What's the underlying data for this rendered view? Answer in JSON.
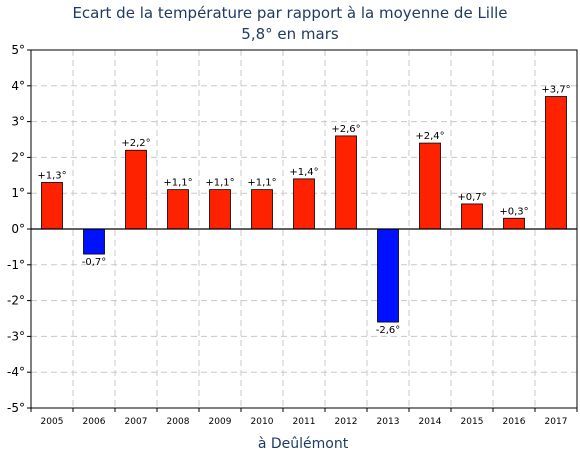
{
  "chart_data": {
    "type": "bar",
    "title": "Ecart de la température par rapport à la moyenne de Lille",
    "subtitle": "5,8° en mars",
    "xlabel": "à Deûlémont",
    "ylabel": "",
    "ylim": [
      -5,
      5
    ],
    "yticks": [
      5,
      4,
      3,
      2,
      1,
      0,
      -1,
      -2,
      -3,
      -4,
      -5
    ],
    "ytick_labels": [
      "5°",
      "4°",
      "3°",
      "2°",
      "1°",
      "0°",
      "-1°",
      "-2°",
      "-3°",
      "-4°",
      "-5°"
    ],
    "categories": [
      "2005",
      "2006",
      "2007",
      "2008",
      "2009",
      "2010",
      "2011",
      "2012",
      "2013",
      "2014",
      "2015",
      "2016",
      "2017"
    ],
    "values": [
      1.3,
      -0.7,
      2.2,
      1.1,
      1.1,
      1.1,
      1.4,
      2.6,
      -2.6,
      2.4,
      0.7,
      0.3,
      3.7
    ],
    "data_labels": [
      "+1,3°",
      "-0,7°",
      "+2,2°",
      "+1,1°",
      "+1,1°",
      "+1,1°",
      "+1,4°",
      "+2,6°",
      "-2,6°",
      "+2,4°",
      "+0,7°",
      "+0,3°",
      "+3,7°"
    ],
    "grid": true,
    "colors": {
      "positive": "#ff2200",
      "negative": "#0011ff"
    }
  }
}
